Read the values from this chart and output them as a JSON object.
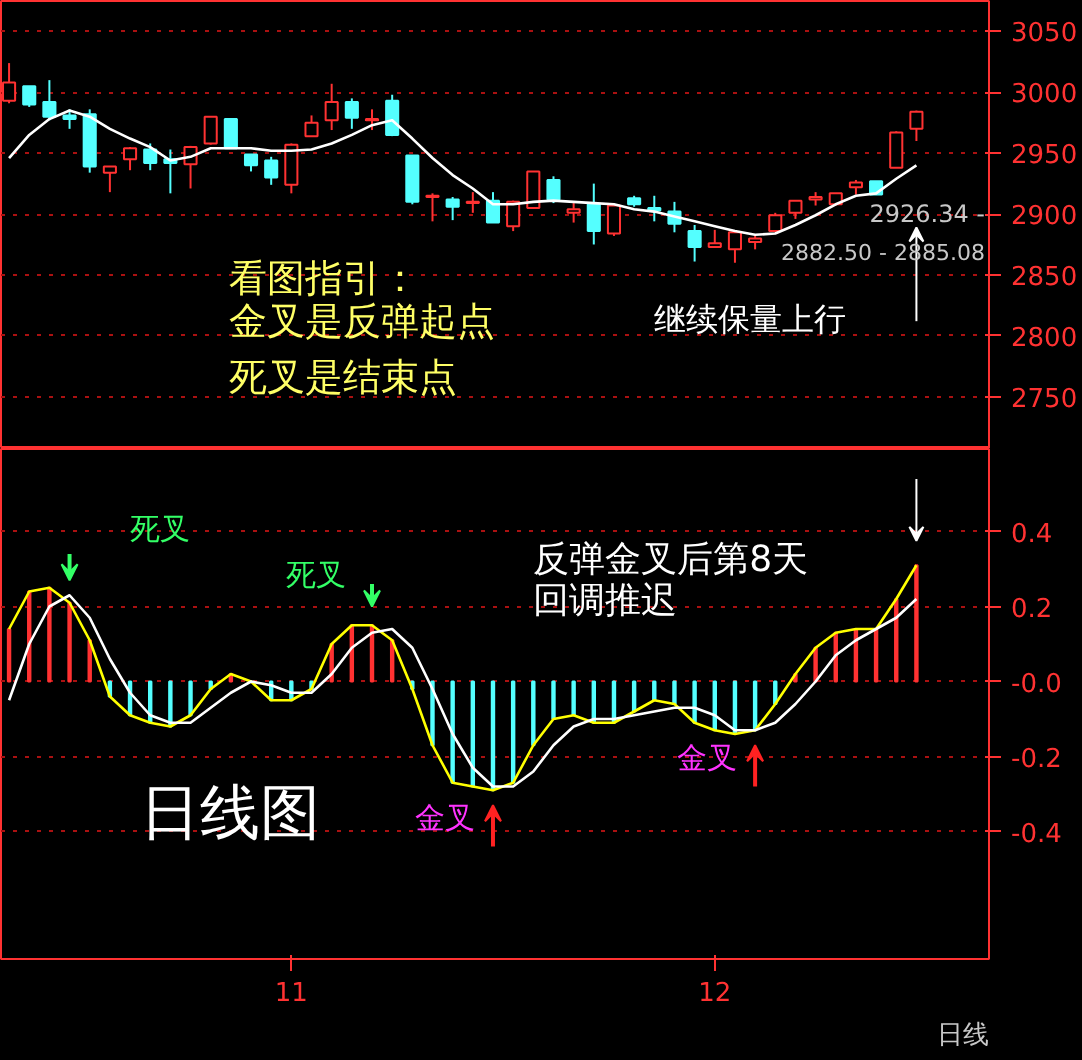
{
  "chart_data": [
    {
      "type": "candlestick",
      "categories": [
        null,
        null,
        null,
        null,
        null,
        null,
        null,
        null,
        null,
        null,
        null,
        null,
        null,
        null,
        "11",
        null,
        null,
        null,
        null,
        null,
        null,
        null,
        null,
        null,
        null,
        null,
        null,
        null,
        null,
        null,
        null,
        null,
        null,
        null,
        null,
        "12",
        null,
        null,
        null,
        null,
        null,
        null,
        null,
        null,
        null,
        null
      ],
      "ohlc": [
        [
          2993,
          3024,
          2991,
          3008
        ],
        [
          3005,
          3005,
          2988,
          2990
        ],
        [
          2992,
          3010,
          2977,
          2980
        ],
        [
          2981,
          2986,
          2970,
          2978
        ],
        [
          2982,
          2986,
          2934,
          2939
        ],
        [
          2934,
          2939,
          2918,
          2939
        ],
        [
          2945,
          2955,
          2936,
          2954
        ],
        [
          2953,
          2958,
          2936,
          2942
        ],
        [
          2945,
          2953,
          2917,
          2942
        ],
        [
          2941,
          2956,
          2921,
          2955
        ],
        [
          2958,
          2980,
          2957,
          2980
        ],
        [
          2978,
          2978,
          2954,
          2954
        ],
        [
          2949,
          2949,
          2935,
          2940
        ],
        [
          2944,
          2947,
          2924,
          2930
        ],
        [
          2924,
          2958,
          2917,
          2957
        ],
        [
          2964,
          2981,
          2964,
          2975
        ],
        [
          2977,
          3007,
          2969,
          2992
        ],
        [
          2992,
          2995,
          2970,
          2979
        ],
        [
          2977,
          2986,
          2969,
          2978
        ],
        [
          2993,
          2998,
          2964,
          2965
        ],
        [
          2948,
          2948,
          2908,
          2910
        ],
        [
          2914,
          2917,
          2894,
          2915
        ],
        [
          2912,
          2914,
          2895,
          2906
        ],
        [
          2909,
          2918,
          2901,
          2910
        ],
        [
          2911,
          2918,
          2893,
          2893
        ],
        [
          2890,
          2911,
          2886,
          2910
        ],
        [
          2905,
          2935,
          2905,
          2935
        ],
        [
          2928,
          2931,
          2909,
          2912
        ],
        [
          2901,
          2909,
          2893,
          2904
        ],
        [
          2908,
          2925,
          2875,
          2886
        ],
        [
          2884,
          2907,
          2882,
          2907
        ],
        [
          2913,
          2915,
          2906,
          2908
        ],
        [
          2905,
          2915,
          2894,
          2903
        ],
        [
          2902,
          2910,
          2885,
          2892
        ],
        [
          2886,
          2891,
          2861,
          2873
        ],
        [
          2873,
          2887,
          2873,
          2876
        ],
        [
          2871,
          2885,
          2860,
          2885
        ],
        [
          2877,
          2882,
          2871,
          2880
        ],
        [
          2886,
          2901,
          2885,
          2899
        ],
        [
          2901,
          2911,
          2896,
          2911
        ],
        [
          2912,
          2918,
          2907,
          2914
        ],
        [
          2908,
          2917,
          2907,
          2917
        ],
        [
          2922,
          2928,
          2916,
          2926
        ],
        [
          2927,
          2927,
          2916,
          2916
        ],
        [
          2938,
          2968,
          2938,
          2967
        ],
        [
          2970,
          2985,
          2960,
          2984
        ]
      ],
      "series": [
        {
          "type": "line",
          "color": "#ffffff",
          "values": [
            2946,
            2965,
            2978,
            2985,
            2980,
            2970,
            2962,
            2955,
            2944,
            2947,
            2954,
            2954,
            2954,
            2952,
            2952,
            2953,
            2958,
            2965,
            2973,
            2977,
            2962,
            2946,
            2932,
            2921,
            2908,
            2908,
            2910,
            2911,
            2910,
            2909,
            2908,
            2904,
            2902,
            2898,
            2894,
            2890,
            2886,
            2883,
            2884,
            2891,
            2899,
            2908,
            2915,
            2917,
            2929,
            2940
          ]
        }
      ],
      "ylim": [
        2707,
        3075
      ],
      "yticks": [
        2750,
        2800,
        2850,
        2900,
        2950,
        3000,
        3050
      ],
      "tick_labels": "y",
      "grid": "y",
      "annotations": [
        "看图指引：",
        "金叉是反弹起点",
        "死叉是结束点",
        "继续保量上行",
        "2926.34 -",
        "2882.50 - 2885.08"
      ]
    },
    {
      "type": "line",
      "categories": [
        null,
        null,
        null,
        null,
        null,
        null,
        null,
        null,
        null,
        null,
        null,
        null,
        null,
        null,
        "11",
        null,
        null,
        null,
        null,
        null,
        null,
        null,
        null,
        null,
        null,
        null,
        null,
        null,
        null,
        null,
        null,
        null,
        null,
        null,
        null,
        "12",
        null,
        null,
        null,
        null,
        null,
        null,
        null,
        null,
        null,
        null
      ],
      "series": [
        {
          "type": "bar",
          "colors": [
            "#ff3232",
            "#ff3232",
            "#ff3232",
            "#ff3232",
            "#ff3232",
            "#54ffff",
            "#54ffff",
            "#54ffff",
            "#54ffff",
            "#54ffff",
            "#54ffff",
            "#ff3232",
            "#54ffff",
            "#54ffff",
            "#54ffff",
            "#54ffff",
            "#ff3232",
            "#ff3232",
            "#ff3232",
            "#ff3232",
            "#54ffff",
            "#54ffff",
            "#54ffff",
            "#54ffff",
            "#54ffff",
            "#54ffff",
            "#54ffff",
            "#54ffff",
            "#54ffff",
            "#54ffff",
            "#54ffff",
            "#54ffff",
            "#54ffff",
            "#54ffff",
            "#54ffff",
            "#54ffff",
            "#54ffff",
            "#54ffff",
            "#54ffff",
            "#ff3232",
            "#ff3232",
            "#ff3232",
            "#ff3232",
            "#ff3232",
            "#ff3232",
            "#ff3232"
          ],
          "values": [
            0.14,
            0.24,
            0.25,
            0.21,
            0.11,
            -0.04,
            -0.09,
            -0.11,
            -0.12,
            -0.09,
            -0.02,
            0.02,
            0.0,
            -0.05,
            -0.05,
            -0.02,
            0.1,
            0.15,
            0.15,
            0.11,
            -0.02,
            -0.17,
            -0.27,
            -0.28,
            -0.29,
            -0.27,
            -0.17,
            -0.1,
            -0.09,
            -0.11,
            -0.11,
            -0.08,
            -0.05,
            -0.06,
            -0.11,
            -0.13,
            -0.14,
            -0.13,
            -0.06,
            0.02,
            0.09,
            0.13,
            0.14,
            0.14,
            0.22,
            0.31
          ]
        },
        {
          "color": "#ffff00",
          "values": [
            0.14,
            0.24,
            0.25,
            0.21,
            0.11,
            -0.04,
            -0.09,
            -0.11,
            -0.12,
            -0.09,
            -0.02,
            0.02,
            0.0,
            -0.05,
            -0.05,
            -0.02,
            0.1,
            0.15,
            0.15,
            0.11,
            -0.02,
            -0.17,
            -0.27,
            -0.28,
            -0.29,
            -0.27,
            -0.17,
            -0.1,
            -0.09,
            -0.11,
            -0.11,
            -0.08,
            -0.05,
            -0.06,
            -0.11,
            -0.13,
            -0.14,
            -0.13,
            -0.06,
            0.02,
            0.09,
            0.13,
            0.14,
            0.14,
            0.22,
            0.31
          ]
        },
        {
          "color": "#ffffff",
          "values": [
            -0.05,
            0.1,
            0.2,
            0.23,
            0.17,
            0.06,
            -0.03,
            -0.09,
            -0.11,
            -0.11,
            -0.07,
            -0.03,
            0.0,
            -0.01,
            -0.03,
            -0.03,
            0.02,
            0.09,
            0.13,
            0.14,
            0.09,
            -0.02,
            -0.14,
            -0.23,
            -0.28,
            -0.28,
            -0.24,
            -0.17,
            -0.12,
            -0.1,
            -0.1,
            -0.09,
            -0.08,
            -0.07,
            -0.07,
            -0.09,
            -0.13,
            -0.13,
            -0.11,
            -0.06,
            0.0,
            0.07,
            0.11,
            0.14,
            0.17,
            0.22
          ]
        }
      ],
      "ylim": [
        -0.74,
        0.62
      ],
      "yticks": [
        -0.4,
        -0.2,
        {
          "value": 0,
          "label": "-0.0"
        },
        0.2,
        0.4
      ],
      "grid": "y",
      "annotations": [
        "死叉",
        "死叉",
        "金叉",
        "金叉",
        "日线图",
        "反弹金叉后第8天",
        "回调推迟",
        "日线"
      ]
    }
  ]
}
